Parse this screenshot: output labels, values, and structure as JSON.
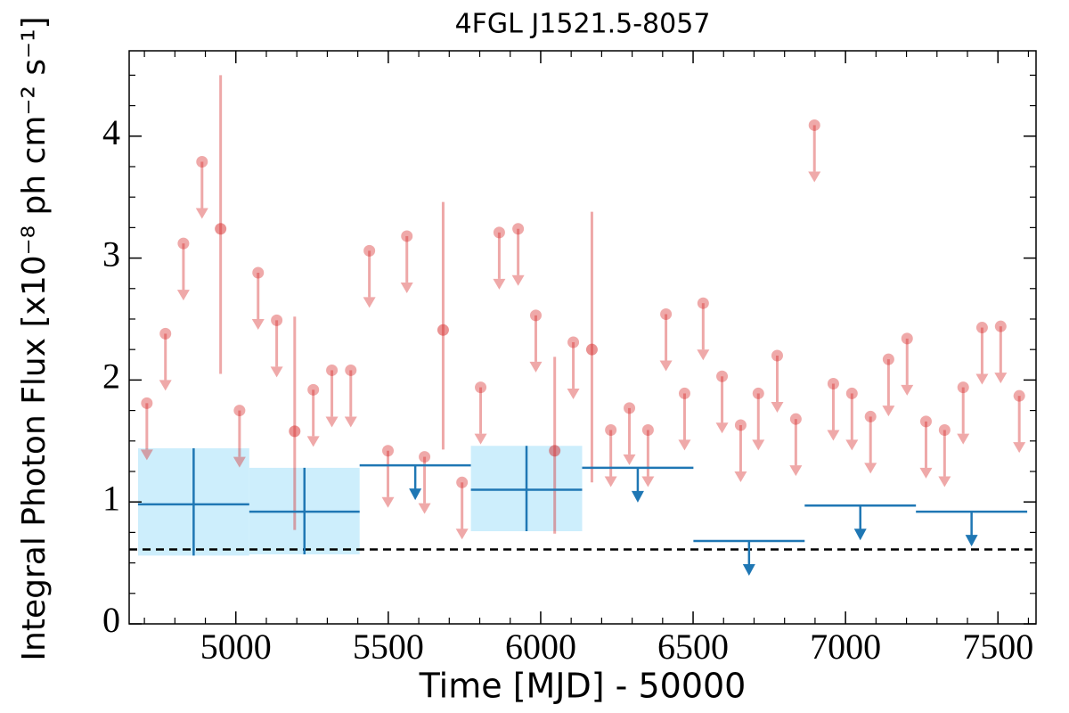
{
  "chart_data": {
    "type": "lightcurve",
    "title": "4FGL J1521.5-8057",
    "xlabel": "Time [MJD] - 50000",
    "ylabel": "Integral Photon Flux [x10⁻⁸ ph cm⁻² s⁻¹]",
    "xlim": [
      4650,
      7625
    ],
    "ylim": [
      0,
      4.7
    ],
    "xticks": [
      5000,
      5500,
      6000,
      6500,
      7000,
      7500
    ],
    "yticks": [
      0,
      1,
      2,
      3,
      4
    ],
    "xticks_minor": [
      4700,
      4800,
      4900,
      5100,
      5200,
      5300,
      5400,
      5600,
      5700,
      5800,
      5900,
      6100,
      6200,
      6300,
      6400,
      6600,
      6700,
      6800,
      6900,
      7100,
      7200,
      7300,
      7400,
      7600
    ],
    "yticks_minor": [
      0.25,
      0.5,
      0.75,
      1.25,
      1.5,
      1.75,
      2.25,
      2.5,
      2.75,
      3.25,
      3.5,
      3.75,
      4.25,
      4.5
    ],
    "reference_line": 0.61,
    "short_bins": {
      "color": "#d62728",
      "x": [
        4708,
        4769,
        4828,
        4889,
        4950,
        5012,
        5073,
        5134,
        5193,
        5254,
        5315,
        5377,
        5438,
        5499,
        5561,
        5619,
        5680,
        5742,
        5803,
        5864,
        5926,
        5984,
        6046,
        6107,
        6168,
        6230,
        6291,
        6352,
        6411,
        6472,
        6533,
        6595,
        6656,
        6714,
        6776,
        6837,
        6898,
        6960,
        7021,
        7082,
        7141,
        7202,
        7264,
        7325,
        7386,
        7448,
        7509,
        7570
      ],
      "values": [
        1.81,
        2.38,
        3.12,
        3.79,
        3.24,
        1.75,
        2.88,
        2.49,
        1.58,
        1.92,
        2.08,
        2.08,
        3.06,
        1.42,
        3.18,
        1.37,
        2.41,
        1.16,
        1.94,
        3.21,
        3.24,
        2.53,
        1.42,
        2.31,
        2.25,
        1.59,
        1.77,
        1.59,
        2.54,
        1.89,
        2.63,
        2.03,
        1.63,
        1.89,
        2.2,
        1.68,
        4.09,
        1.97,
        1.89,
        1.7,
        2.17,
        2.34,
        1.66,
        1.59,
        1.94,
        2.43,
        2.44,
        1.87
      ],
      "upper_limit": [
        true,
        true,
        true,
        true,
        false,
        true,
        true,
        true,
        false,
        true,
        true,
        true,
        true,
        true,
        true,
        true,
        false,
        true,
        true,
        true,
        true,
        true,
        false,
        true,
        false,
        true,
        true,
        true,
        true,
        true,
        true,
        true,
        true,
        true,
        true,
        true,
        true,
        true,
        true,
        true,
        true,
        true,
        true,
        true,
        true,
        true,
        true,
        true
      ],
      "err_low": [
        null,
        null,
        null,
        null,
        1.19,
        null,
        null,
        null,
        0.81,
        null,
        null,
        null,
        null,
        null,
        null,
        null,
        0.98,
        null,
        null,
        null,
        null,
        null,
        0.68,
        null,
        1.09,
        null,
        null,
        null,
        null,
        null,
        null,
        null,
        null,
        null,
        null,
        null,
        null,
        null,
        null,
        null,
        null,
        null,
        null,
        null,
        null,
        null,
        null,
        null
      ],
      "err_high": [
        null,
        null,
        null,
        null,
        1.26,
        null,
        null,
        null,
        0.94,
        null,
        null,
        null,
        null,
        null,
        null,
        null,
        1.05,
        null,
        null,
        null,
        null,
        null,
        0.77,
        null,
        1.13,
        null,
        null,
        null,
        null,
        null,
        null,
        null,
        null,
        null,
        null,
        null,
        null,
        null,
        null,
        null,
        null,
        null,
        null,
        null,
        null,
        null,
        null,
        null
      ]
    },
    "long_bins": {
      "color": "#1f77b4",
      "band_color": "#cdeefc",
      "x_start": [
        4679,
        5044,
        5406,
        5771,
        6136,
        6501,
        6866,
        7231
      ],
      "x_end": [
        5044,
        5406,
        5771,
        6136,
        6501,
        6866,
        7231,
        7596
      ],
      "values": [
        0.98,
        0.92,
        1.3,
        1.1,
        1.28,
        0.68,
        0.97,
        0.92
      ],
      "upper_limit": [
        false,
        false,
        true,
        false,
        true,
        true,
        true,
        true
      ],
      "err_low": [
        0.42,
        0.35,
        null,
        0.34,
        null,
        null,
        null,
        null
      ],
      "err_high": [
        0.46,
        0.36,
        null,
        0.36,
        null,
        null,
        null,
        null
      ]
    }
  }
}
